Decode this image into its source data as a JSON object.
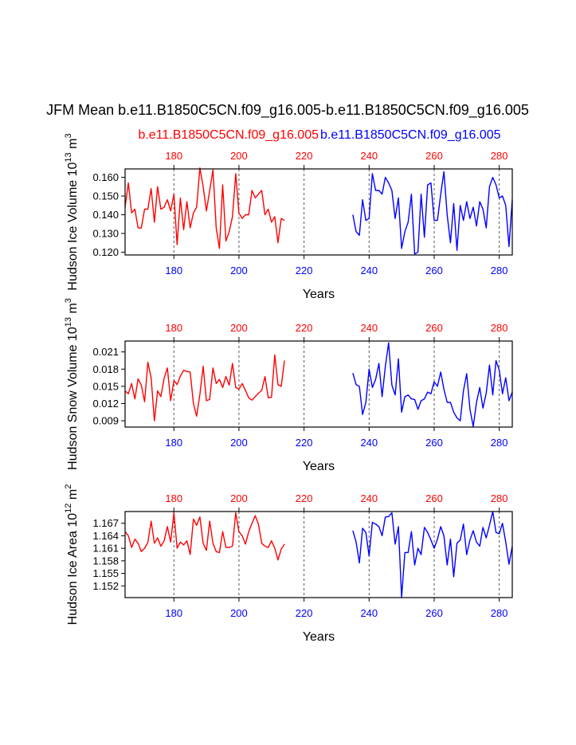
{
  "figure": {
    "title": "JFM Mean b.e11.B1850C5CN.f09_g16.005-b.e11.B1850C5CN.f09_g16.005",
    "legend_red": "b.e11.B1850C5CN.f09_g16.005",
    "legend_blue": "b.e11.B1850C5CN.f09_g16.005"
  },
  "colors": {
    "red": "#ff0000",
    "blue": "#0000ff",
    "axis": "#000000",
    "grid": "#555555"
  },
  "chart_data": [
    {
      "type": "line",
      "ylabel_parts": [
        "Hudson Ice Volume 10",
        "13",
        " m",
        "3"
      ],
      "xlabel": "Years",
      "xlim": [
        165,
        284
      ],
      "ylim": [
        0.1185,
        0.1645
      ],
      "yticks": [
        "0.120",
        "0.130",
        "0.140",
        "0.150",
        "0.160"
      ],
      "xticks": [
        "180",
        "200",
        "220",
        "240",
        "260",
        "280"
      ],
      "grid_x": [
        180,
        200,
        220,
        240,
        260,
        280
      ],
      "series": [
        {
          "color": "red",
          "x": [
            165,
            166,
            167,
            168,
            169,
            170,
            171,
            172,
            173,
            174,
            175,
            176,
            177,
            178,
            179,
            180,
            181,
            182,
            183,
            184,
            185,
            186,
            187,
            188,
            189,
            190,
            191,
            192,
            193,
            194,
            195,
            196,
            197,
            198,
            199,
            200,
            201,
            202,
            203,
            204,
            205,
            206,
            207,
            208,
            209,
            210,
            211,
            212,
            213,
            214
          ],
          "values": [
            0.144,
            0.157,
            0.141,
            0.143,
            0.133,
            0.133,
            0.143,
            0.143,
            0.154,
            0.136,
            0.155,
            0.143,
            0.144,
            0.148,
            0.142,
            0.151,
            0.124,
            0.149,
            0.132,
            0.147,
            0.133,
            0.141,
            0.144,
            0.165,
            0.155,
            0.142,
            0.153,
            0.164,
            0.133,
            0.122,
            0.156,
            0.126,
            0.131,
            0.139,
            0.162,
            0.141,
            0.138,
            0.14,
            0.14,
            0.153,
            0.149,
            0.151,
            0.153,
            0.14,
            0.143,
            0.136,
            0.139,
            0.125,
            0.138,
            0.137
          ]
        },
        {
          "color": "blue",
          "x": [
            235,
            236,
            237,
            238,
            239,
            240,
            241,
            242,
            243,
            244,
            245,
            246,
            247,
            248,
            249,
            250,
            251,
            252,
            253,
            254,
            255,
            256,
            257,
            258,
            259,
            260,
            261,
            262,
            263,
            264,
            265,
            266,
            267,
            268,
            269,
            270,
            271,
            272,
            273,
            274,
            275,
            276,
            277,
            278,
            279,
            280,
            281,
            282,
            283,
            284
          ],
          "values": [
            0.14,
            0.131,
            0.129,
            0.148,
            0.137,
            0.138,
            0.162,
            0.153,
            0.153,
            0.151,
            0.16,
            0.157,
            0.153,
            0.138,
            0.149,
            0.122,
            0.131,
            0.136,
            0.151,
            0.119,
            0.12,
            0.151,
            0.128,
            0.156,
            0.157,
            0.137,
            0.137,
            0.151,
            0.163,
            0.14,
            0.125,
            0.146,
            0.121,
            0.145,
            0.137,
            0.147,
            0.138,
            0.144,
            0.134,
            0.147,
            0.143,
            0.133,
            0.155,
            0.16,
            0.156,
            0.149,
            0.15,
            0.145,
            0.123,
            0.148
          ]
        }
      ]
    },
    {
      "type": "line",
      "ylabel_parts": [
        "Hudson Snow Volume 10",
        "13",
        " m",
        "3"
      ],
      "xlabel": "Years",
      "xlim": [
        165,
        284
      ],
      "ylim": [
        0.0079,
        0.0229
      ],
      "yticks": [
        "0.009",
        "0.012",
        "0.015",
        "0.018",
        "0.021"
      ],
      "xticks": [
        "180",
        "200",
        "220",
        "240",
        "260",
        "280"
      ],
      "grid_x": [
        180,
        200,
        220,
        240,
        260,
        280
      ],
      "series": [
        {
          "color": "red",
          "x": [
            165,
            166,
            167,
            168,
            169,
            170,
            171,
            172,
            173,
            174,
            175,
            176,
            177,
            178,
            179,
            180,
            181,
            182,
            183,
            184,
            185,
            186,
            187,
            188,
            189,
            190,
            191,
            192,
            193,
            194,
            195,
            196,
            197,
            198,
            199,
            200,
            201,
            202,
            203,
            204,
            205,
            206,
            207,
            208,
            209,
            210,
            211,
            212,
            213,
            214
          ],
          "values": [
            0.0142,
            0.0137,
            0.0155,
            0.0128,
            0.0163,
            0.0152,
            0.0123,
            0.0192,
            0.0165,
            0.009,
            0.0142,
            0.0132,
            0.0164,
            0.0182,
            0.0125,
            0.016,
            0.0153,
            0.0168,
            0.0178,
            0.0176,
            0.0175,
            0.012,
            0.0098,
            0.0136,
            0.0185,
            0.0125,
            0.0127,
            0.0182,
            0.0155,
            0.0162,
            0.0148,
            0.0167,
            0.0152,
            0.019,
            0.0148,
            0.0145,
            0.0155,
            0.0143,
            0.013,
            0.0126,
            0.0132,
            0.0138,
            0.0143,
            0.0167,
            0.013,
            0.0131,
            0.0205,
            0.0153,
            0.015,
            0.0195
          ]
        },
        {
          "color": "blue",
          "x": [
            235,
            236,
            237,
            238,
            239,
            240,
            241,
            242,
            243,
            244,
            245,
            246,
            247,
            248,
            249,
            250,
            251,
            252,
            253,
            254,
            255,
            256,
            257,
            258,
            259,
            260,
            261,
            262,
            263,
            264,
            265,
            266,
            267,
            268,
            269,
            270,
            271,
            272,
            273,
            274,
            275,
            276,
            277,
            278,
            279,
            280,
            281,
            282,
            283,
            284
          ],
          "values": [
            0.0173,
            0.0153,
            0.015,
            0.0101,
            0.0122,
            0.018,
            0.0148,
            0.0162,
            0.019,
            0.0132,
            0.0185,
            0.0226,
            0.0152,
            0.0135,
            0.0198,
            0.0105,
            0.0132,
            0.0135,
            0.0128,
            0.0127,
            0.011,
            0.0125,
            0.0128,
            0.014,
            0.0137,
            0.0158,
            0.015,
            0.0175,
            0.0145,
            0.0122,
            0.0122,
            0.0105,
            0.0095,
            0.009,
            0.0142,
            0.0172,
            0.011,
            0.008,
            0.0122,
            0.0148,
            0.0112,
            0.0138,
            0.0187,
            0.0135,
            0.0195,
            0.0178,
            0.0137,
            0.0165,
            0.0125,
            0.014
          ]
        }
      ]
    },
    {
      "type": "line",
      "ylabel_parts": [
        "Hudson Ice Area 10",
        "12",
        " m",
        "2"
      ],
      "xlabel": "Years",
      "xlim": [
        165,
        284
      ],
      "ylim": [
        1.1492,
        1.1698
      ],
      "yticks": [
        "1.152",
        "1.155",
        "1.158",
        "1.161",
        "1.164",
        "1.167"
      ],
      "xticks": [
        "180",
        "200",
        "220",
        "240",
        "260",
        "280"
      ],
      "grid_x": [
        180,
        200,
        220,
        240,
        260,
        280
      ],
      "series": [
        {
          "color": "red",
          "x": [
            165,
            166,
            167,
            168,
            169,
            170,
            171,
            172,
            173,
            174,
            175,
            176,
            177,
            178,
            179,
            180,
            181,
            182,
            183,
            184,
            185,
            186,
            187,
            188,
            189,
            190,
            191,
            192,
            193,
            194,
            195,
            196,
            197,
            198,
            199,
            200,
            201,
            202,
            203,
            204,
            205,
            206,
            207,
            208,
            209,
            210,
            211,
            212,
            213,
            214
          ],
          "values": [
            1.165,
            1.164,
            1.1612,
            1.1632,
            1.1622,
            1.1602,
            1.161,
            1.1624,
            1.1675,
            1.1622,
            1.1635,
            1.1615,
            1.1628,
            1.1662,
            1.1625,
            1.1695,
            1.161,
            1.1625,
            1.1618,
            1.1628,
            1.1595,
            1.168,
            1.1665,
            1.1685,
            1.1622,
            1.1605,
            1.1675,
            1.1622,
            1.1602,
            1.16,
            1.165,
            1.1612,
            1.1612,
            1.1615,
            1.1695,
            1.165,
            1.164,
            1.162,
            1.165,
            1.167,
            1.1688,
            1.1668,
            1.1622,
            1.1615,
            1.1612,
            1.1628,
            1.161,
            1.1582,
            1.1608,
            1.162
          ]
        },
        {
          "color": "blue",
          "x": [
            235,
            236,
            237,
            238,
            239,
            240,
            241,
            242,
            243,
            244,
            245,
            246,
            247,
            248,
            249,
            250,
            251,
            252,
            253,
            254,
            255,
            256,
            257,
            258,
            259,
            260,
            261,
            262,
            263,
            264,
            265,
            266,
            267,
            268,
            269,
            270,
            271,
            272,
            273,
            274,
            275,
            276,
            277,
            278,
            279,
            280,
            281,
            282,
            283,
            284
          ],
          "values": [
            1.1652,
            1.1625,
            1.1575,
            1.1658,
            1.1648,
            1.1592,
            1.1672,
            1.1668,
            1.1662,
            1.164,
            1.1685,
            1.1686,
            1.1695,
            1.162,
            1.1662,
            1.1492,
            1.16,
            1.16,
            1.165,
            1.157,
            1.161,
            1.1595,
            1.166,
            1.1648,
            1.163,
            1.161,
            1.1632,
            1.1662,
            1.164,
            1.157,
            1.1632,
            1.1542,
            1.1622,
            1.163,
            1.1668,
            1.1595,
            1.163,
            1.1652,
            1.1625,
            1.1615,
            1.166,
            1.1635,
            1.1665,
            1.1698,
            1.1648,
            1.1645,
            1.167,
            1.1625,
            1.1572,
            1.1615
          ]
        }
      ]
    }
  ]
}
